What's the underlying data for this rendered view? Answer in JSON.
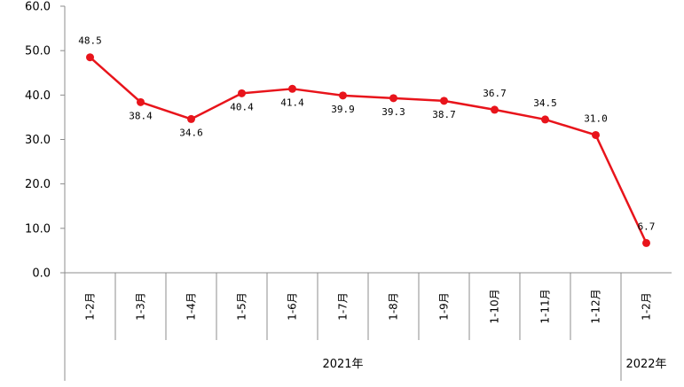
{
  "chart_data": {
    "type": "line",
    "categories": [
      "1-2月",
      "1-3月",
      "1-4月",
      "1-5月",
      "1-6月",
      "1-7月",
      "1-8月",
      "1-9月",
      "1-10月",
      "1-11月",
      "1-12月",
      "1-2月"
    ],
    "category_groups": [
      {
        "label": "2021年",
        "count": 11
      },
      {
        "label": "2022年",
        "count": 1
      }
    ],
    "series": [
      {
        "values": [
          48.5,
          38.4,
          34.6,
          40.4,
          41.4,
          39.9,
          39.3,
          38.7,
          36.7,
          34.5,
          31.0,
          6.7
        ],
        "value_labels": [
          "48.5",
          "38.4",
          "34.6",
          "40.4",
          "41.4",
          "39.9",
          "39.3",
          "38.7",
          "36.7",
          "34.5",
          "31.0",
          "6.7"
        ],
        "label_positions": [
          "above",
          "below",
          "below",
          "below",
          "below",
          "below",
          "below",
          "below",
          "above",
          "above",
          "above",
          "above"
        ],
        "color": "#e8141b"
      }
    ],
    "ylim": [
      0,
      60
    ],
    "yticks": [
      0,
      10,
      20,
      30,
      40,
      50,
      60
    ],
    "ytick_labels": [
      "0.0",
      "10.0",
      "20.0",
      "30.0",
      "40.0",
      "50.0",
      "60.0"
    ],
    "grid": false,
    "legend": "none"
  }
}
